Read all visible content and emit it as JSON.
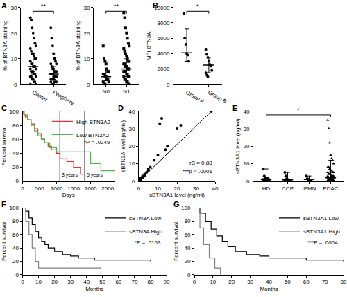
{
  "chart_data": [
    {
      "type": "dot",
      "title": "A",
      "ylabel": "% of BTN3A staining",
      "ylim": [
        0,
        30
      ],
      "yticks": [
        0,
        10,
        20,
        30
      ],
      "series": [
        {
          "name": "Center",
          "marker": "circle",
          "values": [
            26,
            25,
            22,
            20,
            18,
            16,
            15,
            14,
            13,
            12,
            12,
            11,
            10,
            10,
            9,
            8,
            8,
            7,
            7,
            7,
            6,
            6,
            5,
            5,
            5,
            4,
            4,
            3,
            3,
            3,
            2,
            2,
            1,
            1,
            0,
            0
          ],
          "median": 7,
          "low": 4,
          "high": 12
        },
        {
          "name": "Periphery",
          "marker": "circle",
          "values": [
            22,
            18,
            15,
            12,
            10,
            9,
            8,
            8,
            7,
            6,
            6,
            5,
            5,
            5,
            4,
            4,
            4,
            3,
            3,
            3,
            3,
            2,
            2,
            2,
            2,
            1,
            1,
            1,
            1,
            0,
            0,
            0
          ],
          "median": 4,
          "low": 2,
          "high": 7
        }
      ],
      "annotations": [
        {
          "text": "**",
          "from": "Center",
          "to": "Periphery"
        }
      ]
    },
    {
      "type": "dot",
      "ylabel": "% of BTN3A staining",
      "ylim": [
        0,
        30
      ],
      "yticks": [
        0,
        10,
        20,
        30
      ],
      "series": [
        {
          "name": "N0",
          "marker": "square",
          "values": [
            15,
            10,
            9,
            8,
            6,
            5,
            5,
            4,
            4,
            3,
            3,
            2,
            2,
            1,
            1,
            0,
            0
          ],
          "median": 3,
          "low": 1.5,
          "high": 6
        },
        {
          "name": "N1",
          "marker": "square",
          "values": [
            28,
            26,
            22,
            20,
            18,
            16,
            15,
            14,
            13,
            12,
            11,
            10,
            9,
            9,
            8,
            8,
            7,
            7,
            6,
            6,
            6,
            5,
            5,
            5,
            4,
            4,
            3,
            3,
            3,
            2,
            2,
            1,
            1,
            0,
            0
          ],
          "median": 6,
          "low": 3,
          "high": 10
        }
      ],
      "annotations": [
        {
          "text": "**",
          "from": "N0",
          "to": "N1"
        }
      ]
    },
    {
      "type": "dot",
      "title": "B",
      "ylabel": "MFI BTN3A",
      "ylim": [
        0,
        10000
      ],
      "yticks": [
        0,
        2000,
        4000,
        6000,
        8000,
        10000
      ],
      "series": [
        {
          "name": "Group A",
          "marker": "circle",
          "values": [
            9200,
            6000,
            5200,
            4000,
            3800,
            3000
          ],
          "median": 4100,
          "low": 3000,
          "high": 7200
        },
        {
          "name": "Group B",
          "marker": "circle",
          "values": [
            4500,
            3900,
            3500,
            3000,
            2600,
            2400,
            1800,
            1500,
            1200,
            1000
          ],
          "median": 2500,
          "low": 1500,
          "high": 3500
        }
      ],
      "annotations": [
        {
          "text": "*",
          "from": "Group A",
          "to": "Group B"
        }
      ]
    },
    {
      "type": "survival",
      "title": "C",
      "xlabel": "Days",
      "ylabel": "Percent survival",
      "xlim": [
        0,
        2700
      ],
      "xticks": [
        0,
        500,
        1000,
        1500,
        2000,
        2500
      ],
      "ylim": [
        0,
        100
      ],
      "yticks": [
        0,
        20,
        40,
        60,
        80,
        100
      ],
      "legend": "upper right",
      "series": [
        {
          "name": "High BTN3A2",
          "color": "#e8312f",
          "x": [
            0,
            30,
            80,
            150,
            250,
            350,
            450,
            550,
            650,
            750,
            850,
            1000,
            1100,
            1300,
            1500,
            1700,
            1800
          ],
          "values": [
            100,
            96,
            92,
            88,
            82,
            75,
            68,
            60,
            55,
            50,
            45,
            40,
            32,
            28,
            20,
            10,
            10
          ]
        },
        {
          "name": "Low BTN3A2",
          "color": "#4cb84c",
          "x": [
            0,
            50,
            150,
            250,
            350,
            450,
            550,
            650,
            800,
            1000,
            1900,
            2000,
            2300,
            2700
          ],
          "values": [
            100,
            95,
            88,
            80,
            72,
            65,
            60,
            55,
            48,
            42,
            42,
            25,
            15,
            15
          ]
        }
      ],
      "vlines": [
        {
          "x": 1095,
          "label": "3 years"
        },
        {
          "x": 1825,
          "label": "5 years"
        }
      ],
      "annotations": [
        "*P = .0249"
      ]
    },
    {
      "type": "scatter",
      "title": "D",
      "xlabel": "sBTN3A1 level (ng/ml)",
      "ylabel": "sBTN3A level (ng/ml)",
      "xlim": [
        0,
        40
      ],
      "xticks": [
        0,
        10,
        20,
        30,
        40
      ],
      "ylim": [
        0,
        40
      ],
      "yticks": [
        0,
        10,
        20,
        30,
        40
      ],
      "x": [
        0.3,
        0.5,
        0.5,
        1,
        1,
        1,
        1.5,
        2,
        2,
        3,
        3,
        4,
        5,
        5,
        6,
        8,
        10,
        11,
        12,
        14,
        15,
        20,
        22,
        38
      ],
      "values": [
        0.5,
        0.5,
        1,
        1,
        1.5,
        2,
        2,
        3,
        2,
        4,
        3,
        5,
        7,
        6,
        8,
        12,
        15,
        33,
        36,
        18,
        20,
        30,
        32,
        40
      ],
      "fit_line": {
        "x": [
          0,
          38
        ],
        "y": [
          0,
          40
        ]
      },
      "annotations": [
        "rS = 0.88",
        "***p < .0001"
      ]
    },
    {
      "type": "dot",
      "title": "E",
      "ylabel": "sBTN3A1 level (ng/ml)",
      "ylim": [
        0,
        40
      ],
      "yticks": [
        0,
        10,
        20,
        30,
        40
      ],
      "series": [
        {
          "name": "HD",
          "marker": "circle",
          "values": [
            7,
            3,
            2,
            2,
            1.5,
            1.5,
            1,
            1,
            1,
            1,
            0.5,
            0.5,
            0.5,
            0.3,
            0.2
          ],
          "median": 1,
          "low": 0.3,
          "high": 7
        },
        {
          "name": "CCP",
          "marker": "circle",
          "values": [
            5,
            3,
            1.5,
            1,
            0.8,
            0.5,
            0.5,
            0.3
          ],
          "median": 0.8,
          "low": 0.3,
          "high": 5
        },
        {
          "name": "IPMN",
          "marker": "circle",
          "values": [
            3,
            1.5,
            1,
            1,
            0.5,
            0.5
          ],
          "median": 1,
          "low": 0.5,
          "high": 3
        },
        {
          "name": "PDAC",
          "marker": "triangle-up",
          "values": [
            35,
            30,
            22,
            15,
            13,
            12,
            10,
            8,
            8,
            7,
            6,
            6,
            5,
            5,
            5,
            4,
            4,
            4,
            3,
            3,
            3,
            3,
            2,
            2,
            2,
            2,
            2,
            1.5,
            1.5,
            1,
            1,
            1,
            1,
            0.5,
            0.5,
            0.5,
            0.3,
            0.3,
            0.2
          ],
          "median": 2,
          "low": 0.5,
          "high": 12
        }
      ],
      "annotations": [
        {
          "text": "*",
          "from": "HD",
          "to": "PDAC"
        }
      ]
    },
    {
      "type": "survival",
      "title": "F",
      "xlabel": "Months",
      "ylabel": "Percent survival",
      "xlim": [
        0,
        90
      ],
      "xticks": [
        0,
        10,
        20,
        30,
        40,
        50,
        60,
        70,
        80,
        90
      ],
      "ylim": [
        0,
        100
      ],
      "yticks": [
        0,
        20,
        40,
        60,
        80,
        100
      ],
      "legend": "upper right",
      "series": [
        {
          "name": "sBTN3A Low",
          "color": "#000000",
          "x": [
            0,
            2,
            4,
            6,
            8,
            10,
            12,
            14,
            16,
            20,
            25,
            30,
            35,
            45,
            60,
            80
          ],
          "values": [
            100,
            95,
            85,
            75,
            65,
            55,
            50,
            45,
            40,
            35,
            30,
            28,
            25,
            22,
            22,
            20
          ]
        },
        {
          "name": "sBTN3A High",
          "color": "#808080",
          "x": [
            0,
            2,
            4,
            6,
            8,
            10,
            49,
            49
          ],
          "values": [
            100,
            80,
            60,
            40,
            20,
            10,
            10,
            0
          ]
        }
      ],
      "annotations": [
        "*P = .0163"
      ]
    },
    {
      "type": "survival",
      "title": "G",
      "xlabel": "Months",
      "ylabel": "Percent survival",
      "xlim": [
        0,
        80
      ],
      "xticks": [
        0,
        10,
        20,
        30,
        40,
        50,
        60,
        70,
        80
      ],
      "ylim": [
        0,
        100
      ],
      "yticks": [
        0,
        20,
        40,
        60,
        80,
        100
      ],
      "legend": "upper right",
      "series": [
        {
          "name": "sBTN3A1 Low",
          "color": "#000000",
          "x": [
            0,
            3,
            6,
            9,
            12,
            15,
            18,
            22,
            28,
            35,
            40,
            60,
            80
          ],
          "values": [
            100,
            92,
            80,
            68,
            58,
            50,
            42,
            35,
            30,
            28,
            25,
            22,
            20
          ]
        },
        {
          "name": "sBTN3A1 High",
          "color": "#808080",
          "x": [
            0,
            3,
            5,
            8,
            11,
            14
          ],
          "values": [
            100,
            70,
            45,
            25,
            10,
            0
          ]
        }
      ],
      "annotations": [
        "***P = .0004"
      ]
    }
  ]
}
